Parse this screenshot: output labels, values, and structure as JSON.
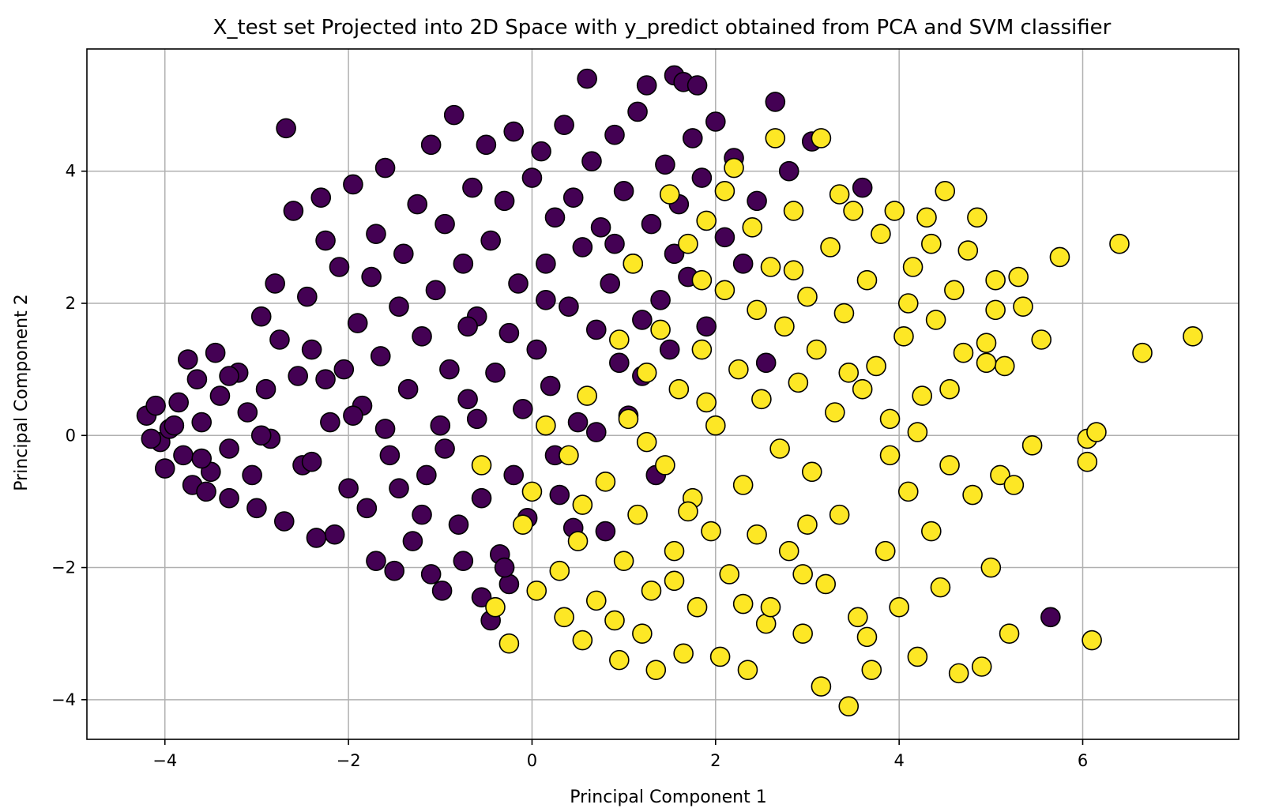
{
  "chart_data": {
    "type": "scatter",
    "title": "X_test set Projected into 2D Space with y_predict obtained from PCA and SVM classifier",
    "xlabel": "Principal Component 1",
    "ylabel": "Principal Component 2",
    "xlim": [
      -4.85,
      7.7
    ],
    "ylim": [
      -4.6,
      5.85
    ],
    "xticks": [
      -4,
      -2,
      0,
      2,
      4,
      6
    ],
    "yticks": [
      -4,
      -2,
      0,
      2,
      4
    ],
    "xtick_labels": [
      "−4",
      "−2",
      "0",
      "2",
      "4",
      "6"
    ],
    "ytick_labels": [
      "−4",
      "−2",
      "0",
      "2",
      "4"
    ],
    "grid": true,
    "marker_edge_color": "#000000",
    "class_colors": {
      "0": "#440154",
      "1": "#fde725"
    },
    "series": [
      {
        "class": 0,
        "color": "#440154",
        "points": [
          [
            -4.2,
            0.3
          ],
          [
            -4.1,
            0.45
          ],
          [
            -4.05,
            -0.1
          ],
          [
            -4.0,
            -0.5
          ],
          [
            -3.95,
            0.1
          ],
          [
            -3.85,
            0.5
          ],
          [
            -3.8,
            -0.3
          ],
          [
            -3.75,
            1.15
          ],
          [
            -3.7,
            -0.75
          ],
          [
            -3.65,
            0.85
          ],
          [
            -3.6,
            0.2
          ],
          [
            -3.5,
            -0.55
          ],
          [
            -3.45,
            1.25
          ],
          [
            -3.4,
            0.6
          ],
          [
            -3.3,
            -0.2
          ],
          [
            -3.3,
            -0.95
          ],
          [
            -3.2,
            0.95
          ],
          [
            -3.1,
            0.35
          ],
          [
            -3.05,
            -0.6
          ],
          [
            -3.0,
            -1.1
          ],
          [
            -2.95,
            1.8
          ],
          [
            -2.9,
            0.7
          ],
          [
            -2.85,
            -0.05
          ],
          [
            -2.8,
            2.3
          ],
          [
            -2.75,
            1.45
          ],
          [
            -2.7,
            -1.3
          ],
          [
            -2.68,
            4.65
          ],
          [
            -2.6,
            3.4
          ],
          [
            -2.55,
            0.9
          ],
          [
            -2.5,
            -0.45
          ],
          [
            -2.45,
            2.1
          ],
          [
            -2.4,
            1.3
          ],
          [
            -2.3,
            3.6
          ],
          [
            -2.25,
            2.95
          ],
          [
            -2.2,
            0.2
          ],
          [
            -2.15,
            -1.5
          ],
          [
            -2.1,
            2.55
          ],
          [
            -2.05,
            1.0
          ],
          [
            -2.0,
            -0.8
          ],
          [
            -1.95,
            3.8
          ],
          [
            -1.9,
            1.7
          ],
          [
            -1.85,
            0.45
          ],
          [
            -1.8,
            -1.1
          ],
          [
            -1.75,
            2.4
          ],
          [
            -1.7,
            3.05
          ],
          [
            -1.65,
            1.2
          ],
          [
            -1.6,
            4.05
          ],
          [
            -1.55,
            -0.3
          ],
          [
            -1.5,
            -2.05
          ],
          [
            -1.45,
            1.95
          ],
          [
            -1.4,
            2.75
          ],
          [
            -1.35,
            0.7
          ],
          [
            -1.3,
            -1.6
          ],
          [
            -1.25,
            3.5
          ],
          [
            -1.2,
            1.5
          ],
          [
            -1.15,
            -0.6
          ],
          [
            -1.1,
            4.4
          ],
          [
            -1.05,
            2.2
          ],
          [
            -1.0,
            0.15
          ],
          [
            -0.98,
            -2.35
          ],
          [
            -0.95,
            3.2
          ],
          [
            -0.9,
            1.0
          ],
          [
            -0.85,
            4.85
          ],
          [
            -0.8,
            -1.35
          ],
          [
            -0.75,
            2.6
          ],
          [
            -0.7,
            0.55
          ],
          [
            -0.65,
            3.75
          ],
          [
            -0.6,
            1.8
          ],
          [
            -0.55,
            -0.95
          ],
          [
            -0.5,
            4.4
          ],
          [
            -0.45,
            2.95
          ],
          [
            -0.4,
            0.95
          ],
          [
            -0.35,
            -1.8
          ],
          [
            -0.3,
            3.55
          ],
          [
            -0.25,
            1.55
          ],
          [
            -0.2,
            4.6
          ],
          [
            -0.15,
            2.3
          ],
          [
            -0.1,
            0.4
          ],
          [
            -0.05,
            -1.25
          ],
          [
            0.0,
            3.9
          ],
          [
            0.05,
            1.3
          ],
          [
            0.1,
            4.3
          ],
          [
            0.15,
            2.6
          ],
          [
            0.2,
            0.75
          ],
          [
            0.25,
            3.3
          ],
          [
            0.3,
            -0.9
          ],
          [
            0.35,
            4.7
          ],
          [
            0.4,
            1.95
          ],
          [
            0.45,
            3.6
          ],
          [
            0.5,
            0.2
          ],
          [
            0.55,
            2.85
          ],
          [
            0.6,
            5.4
          ],
          [
            0.65,
            4.15
          ],
          [
            0.7,
            1.6
          ],
          [
            0.75,
            3.15
          ],
          [
            0.8,
            -1.45
          ],
          [
            0.85,
            2.3
          ],
          [
            0.9,
            4.55
          ],
          [
            0.95,
            1.1
          ],
          [
            1.0,
            3.7
          ],
          [
            1.05,
            0.3
          ],
          [
            1.1,
            2.6
          ],
          [
            1.15,
            4.9
          ],
          [
            1.2,
            1.75
          ],
          [
            1.25,
            5.3
          ],
          [
            1.3,
            3.2
          ],
          [
            1.35,
            -0.6
          ],
          [
            1.4,
            2.05
          ],
          [
            1.45,
            4.1
          ],
          [
            1.5,
            1.3
          ],
          [
            1.55,
            5.45
          ],
          [
            1.6,
            3.5
          ],
          [
            1.65,
            5.35
          ],
          [
            1.7,
            2.4
          ],
          [
            1.75,
            4.5
          ],
          [
            1.8,
            5.3
          ],
          [
            1.85,
            3.9
          ],
          [
            1.9,
            1.65
          ],
          [
            2.0,
            4.75
          ],
          [
            2.1,
            3.0
          ],
          [
            2.2,
            4.2
          ],
          [
            2.3,
            2.6
          ],
          [
            2.45,
            3.55
          ],
          [
            2.65,
            5.05
          ],
          [
            2.8,
            4.0
          ],
          [
            3.05,
            4.45
          ],
          [
            3.6,
            3.75
          ],
          [
            2.55,
            1.1
          ],
          [
            5.65,
            -2.75
          ],
          [
            -0.45,
            -2.8
          ],
          [
            -0.55,
            -2.45
          ],
          [
            -0.75,
            -1.9
          ],
          [
            -1.1,
            -2.1
          ],
          [
            -2.35,
            -1.55
          ],
          [
            -1.7,
            -1.9
          ],
          [
            -0.25,
            -2.25
          ],
          [
            0.45,
            -1.4
          ],
          [
            -3.55,
            -0.85
          ],
          [
            -3.3,
            0.9
          ],
          [
            -2.95,
            0.0
          ],
          [
            -2.4,
            -0.4
          ],
          [
            -1.95,
            0.3
          ],
          [
            -1.45,
            -0.8
          ],
          [
            -0.95,
            -0.2
          ],
          [
            -0.6,
            0.25
          ],
          [
            -0.2,
            -0.6
          ],
          [
            0.25,
            -0.3
          ],
          [
            0.7,
            0.05
          ],
          [
            1.2,
            0.9
          ],
          [
            -0.3,
            -2.0
          ],
          [
            -4.15,
            -0.05
          ],
          [
            -3.9,
            0.15
          ],
          [
            -3.6,
            -0.35
          ],
          [
            -2.25,
            0.85
          ],
          [
            -1.6,
            0.1
          ],
          [
            -1.2,
            -1.2
          ],
          [
            -0.7,
            1.65
          ],
          [
            0.15,
            2.05
          ],
          [
            0.9,
            2.9
          ],
          [
            1.55,
            2.75
          ]
        ]
      },
      {
        "class": 1,
        "color": "#fde725",
        "points": [
          [
            -0.25,
            -3.15
          ],
          [
            -0.4,
            -2.6
          ],
          [
            -0.55,
            -0.45
          ],
          [
            0.0,
            -0.85
          ],
          [
            0.05,
            -2.35
          ],
          [
            0.15,
            0.15
          ],
          [
            0.3,
            -2.05
          ],
          [
            0.4,
            -0.3
          ],
          [
            0.5,
            -1.6
          ],
          [
            0.55,
            -3.1
          ],
          [
            0.6,
            0.6
          ],
          [
            0.7,
            -2.5
          ],
          [
            0.8,
            -0.7
          ],
          [
            0.9,
            -2.8
          ],
          [
            0.95,
            1.45
          ],
          [
            1.0,
            -1.9
          ],
          [
            1.05,
            0.25
          ],
          [
            1.1,
            2.6
          ],
          [
            1.15,
            -1.2
          ],
          [
            1.2,
            -3.0
          ],
          [
            1.25,
            0.95
          ],
          [
            1.3,
            -2.35
          ],
          [
            1.35,
            -3.55
          ],
          [
            1.4,
            1.6
          ],
          [
            1.45,
            -0.45
          ],
          [
            1.5,
            3.65
          ],
          [
            1.55,
            -1.75
          ],
          [
            1.6,
            0.7
          ],
          [
            1.65,
            -3.3
          ],
          [
            1.7,
            2.9
          ],
          [
            1.75,
            -0.95
          ],
          [
            1.8,
            -2.6
          ],
          [
            1.85,
            1.3
          ],
          [
            1.9,
            3.25
          ],
          [
            1.95,
            -1.45
          ],
          [
            2.0,
            0.15
          ],
          [
            2.05,
            -3.35
          ],
          [
            2.1,
            2.2
          ],
          [
            2.15,
            -2.1
          ],
          [
            2.2,
            4.05
          ],
          [
            2.25,
            1.0
          ],
          [
            2.3,
            -0.75
          ],
          [
            2.35,
            -3.55
          ],
          [
            2.4,
            3.15
          ],
          [
            2.45,
            -1.5
          ],
          [
            2.5,
            0.55
          ],
          [
            2.55,
            -2.85
          ],
          [
            2.6,
            2.55
          ],
          [
            2.65,
            4.5
          ],
          [
            2.7,
            -0.2
          ],
          [
            2.75,
            1.65
          ],
          [
            2.8,
            -1.75
          ],
          [
            2.85,
            3.4
          ],
          [
            2.9,
            0.8
          ],
          [
            2.95,
            -3.0
          ],
          [
            3.0,
            2.1
          ],
          [
            3.05,
            -0.55
          ],
          [
            3.1,
            1.3
          ],
          [
            3.15,
            4.5
          ],
          [
            3.2,
            -2.25
          ],
          [
            3.25,
            2.85
          ],
          [
            3.3,
            0.35
          ],
          [
            3.35,
            -1.2
          ],
          [
            3.4,
            1.85
          ],
          [
            3.45,
            -4.1
          ],
          [
            3.5,
            3.4
          ],
          [
            3.55,
            -2.75
          ],
          [
            3.6,
            0.7
          ],
          [
            3.65,
            2.35
          ],
          [
            3.7,
            -3.55
          ],
          [
            3.75,
            1.05
          ],
          [
            3.8,
            3.05
          ],
          [
            3.85,
            -1.75
          ],
          [
            3.9,
            0.25
          ],
          [
            3.95,
            3.4
          ],
          [
            4.0,
            -2.6
          ],
          [
            4.05,
            1.5
          ],
          [
            4.1,
            -0.85
          ],
          [
            4.15,
            2.55
          ],
          [
            4.2,
            -3.35
          ],
          [
            4.25,
            0.6
          ],
          [
            4.3,
            3.3
          ],
          [
            4.35,
            -1.45
          ],
          [
            4.4,
            1.75
          ],
          [
            4.45,
            -2.3
          ],
          [
            4.5,
            3.7
          ],
          [
            4.55,
            -0.45
          ],
          [
            4.6,
            2.2
          ],
          [
            4.65,
            -3.6
          ],
          [
            4.7,
            1.25
          ],
          [
            4.75,
            2.8
          ],
          [
            4.8,
            -0.9
          ],
          [
            4.85,
            3.3
          ],
          [
            4.9,
            -3.5
          ],
          [
            4.95,
            1.4
          ],
          [
            5.0,
            -2.0
          ],
          [
            5.05,
            2.35
          ],
          [
            5.1,
            -0.6
          ],
          [
            5.15,
            1.05
          ],
          [
            5.2,
            -3.0
          ],
          [
            5.25,
            -0.75
          ],
          [
            5.3,
            2.4
          ],
          [
            5.35,
            1.95
          ],
          [
            5.45,
            -0.15
          ],
          [
            5.55,
            1.45
          ],
          [
            5.75,
            2.7
          ],
          [
            6.05,
            -0.05
          ],
          [
            6.05,
            -0.4
          ],
          [
            6.1,
            -3.1
          ],
          [
            6.15,
            0.05
          ],
          [
            6.4,
            2.9
          ],
          [
            6.65,
            1.25
          ],
          [
            7.2,
            1.5
          ],
          [
            5.05,
            1.9
          ],
          [
            4.95,
            1.1
          ],
          [
            4.35,
            2.9
          ],
          [
            4.2,
            0.05
          ],
          [
            3.15,
            -3.8
          ],
          [
            3.65,
            -3.05
          ],
          [
            2.6,
            -2.6
          ],
          [
            1.55,
            -2.2
          ],
          [
            0.95,
            -3.4
          ],
          [
            0.35,
            -2.75
          ],
          [
            -0.1,
            -1.35
          ],
          [
            0.55,
            -1.05
          ],
          [
            1.25,
            -0.1
          ],
          [
            1.9,
            0.5
          ],
          [
            2.45,
            1.9
          ],
          [
            3.0,
            -1.35
          ],
          [
            3.45,
            0.95
          ],
          [
            3.9,
            -0.3
          ],
          [
            4.1,
            2.0
          ],
          [
            4.55,
            0.7
          ],
          [
            2.3,
            -2.55
          ],
          [
            1.7,
            -1.15
          ],
          [
            2.85,
            2.5
          ],
          [
            3.35,
            3.65
          ],
          [
            2.1,
            3.7
          ],
          [
            1.85,
            2.35
          ],
          [
            2.95,
            -2.1
          ]
        ]
      }
    ]
  }
}
